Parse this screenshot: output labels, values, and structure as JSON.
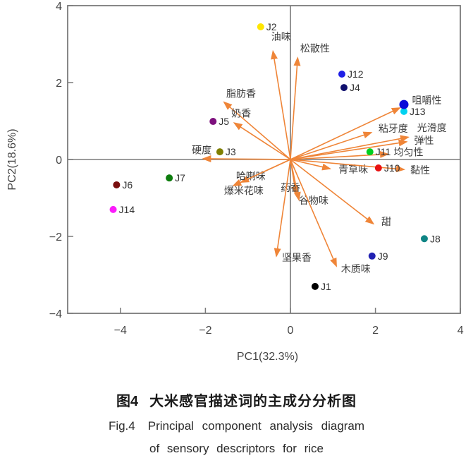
{
  "figure": {
    "caption": {
      "fig_label_zh": "图4",
      "title_zh": "大米感官描述词的主成分分析图",
      "fig_label_en": "Fig.4",
      "title_en_line1": "Principal component analysis diagram",
      "title_en_line2": "of sensory descriptors for rice"
    }
  },
  "chart_data": {
    "type": "scatter",
    "subtype": "pca-biplot",
    "title": "",
    "xlabel": "PC1(32.3%)",
    "ylabel": "PC2(18.6%)",
    "xlim": [
      -5.24,
      4
    ],
    "ylim": [
      -4,
      4
    ],
    "grid": false,
    "legend_position": "none",
    "x_ticks": [
      {
        "v": -4,
        "label": "−4"
      },
      {
        "v": -2,
        "label": "−2"
      },
      {
        "v": 0,
        "label": "0"
      },
      {
        "v": 2,
        "label": "2"
      },
      {
        "v": 4,
        "label": "4"
      }
    ],
    "y_ticks": [
      {
        "v": -4,
        "label": "−4"
      },
      {
        "v": -2,
        "label": "−2"
      },
      {
        "v": 0,
        "label": "0"
      },
      {
        "v": 2,
        "label": "2"
      },
      {
        "v": 4,
        "label": "4"
      }
    ],
    "colors": {
      "vector": "#ef8538",
      "axis": "#7a7a7a",
      "tick_text": "#454545",
      "label_text": "#3d3d3d"
    },
    "points": [
      {
        "name": "J1",
        "label": "J1",
        "x": 0.58,
        "y": -3.3,
        "color": "#000000",
        "r": 5
      },
      {
        "name": "J2",
        "label": "J2",
        "x": -0.7,
        "y": 3.45,
        "color": "#ffe600",
        "r": 5
      },
      {
        "name": "J3",
        "label": "J3",
        "x": -1.66,
        "y": 0.2,
        "color": "#7f7f00",
        "r": 5
      },
      {
        "name": "J4",
        "label": "J4",
        "x": 1.26,
        "y": 1.87,
        "color": "#10106e",
        "r": 5
      },
      {
        "name": "J5",
        "label": "J5",
        "x": -1.82,
        "y": 0.99,
        "color": "#7d107d",
        "r": 5
      },
      {
        "name": "J6",
        "label": "J6",
        "x": -4.09,
        "y": -0.66,
        "color": "#7a0f0f",
        "r": 5
      },
      {
        "name": "J7",
        "label": "J7",
        "x": -2.85,
        "y": -0.48,
        "color": "#0e7d0e",
        "r": 5
      },
      {
        "name": "J8",
        "label": "J8",
        "x": 3.15,
        "y": -2.06,
        "color": "#0f8585",
        "r": 5
      },
      {
        "name": "J9",
        "label": "J9",
        "x": 1.92,
        "y": -2.51,
        "color": "#2121b2",
        "r": 5
      },
      {
        "name": "J10",
        "label": "J10",
        "x": 2.07,
        "y": -0.22,
        "color": "#e81111",
        "r": 5
      },
      {
        "name": "J11",
        "label": "J11",
        "x": 1.87,
        "y": 0.2,
        "color": "#00d01e",
        "r": 5
      },
      {
        "name": "J12",
        "label": "J12",
        "x": 1.21,
        "y": 2.22,
        "color": "#1f1fe6",
        "r": 5
      },
      {
        "name": "J13",
        "label": "J13",
        "x": 2.67,
        "y": 1.25,
        "color": "#00d2f0",
        "r": 5
      },
      {
        "name": "J14",
        "label": "J14",
        "x": -4.17,
        "y": -1.3,
        "color": "#fb1cfb",
        "r": 5
      },
      {
        "name": "unlabeled-point",
        "label": "",
        "x": 2.67,
        "y": 1.43,
        "color": "#0b0bd9",
        "r": 6.5
      }
    ],
    "vectors": [
      {
        "name": "oil-flavor",
        "label": "油味",
        "x": -0.41,
        "y": 2.81,
        "label_x": -0.22,
        "label_y": 3.1,
        "anchor": "middle"
      },
      {
        "name": "looseness",
        "label": "松散性",
        "x": 0.17,
        "y": 2.64,
        "label_x": 0.23,
        "label_y": 2.8,
        "anchor": "start"
      },
      {
        "name": "fatty-aroma",
        "label": "脂肪香",
        "x": -1.56,
        "y": 1.49,
        "label_x": -1.16,
        "label_y": 1.62,
        "anchor": "middle"
      },
      {
        "name": "milky-aroma",
        "label": "奶香",
        "x": -1.32,
        "y": 0.95,
        "label_x": -1.39,
        "label_y": 1.11,
        "anchor": "start"
      },
      {
        "name": "hardness",
        "label": "硬度",
        "x": -2.05,
        "y": 0.02,
        "label_x": -2.32,
        "label_y": 0.16,
        "anchor": "start"
      },
      {
        "name": "rancid-flavor",
        "label": "哈喇味",
        "x": -1.16,
        "y": -0.59,
        "label_x": -1.28,
        "label_y": -0.52,
        "anchor": "start"
      },
      {
        "name": "popcorn-flavor",
        "label": "爆米花味",
        "x": -1.34,
        "y": -0.68,
        "label_x": -1.56,
        "label_y": -0.9,
        "anchor": "start"
      },
      {
        "name": "medicinal-aroma",
        "label": "药香",
        "x": 0.13,
        "y": -0.9,
        "label_x": -0.23,
        "label_y": -0.83,
        "anchor": "start"
      },
      {
        "name": "grain-flavor",
        "label": "谷物味",
        "x": 0.2,
        "y": -1.05,
        "label_x": 0.2,
        "label_y": -1.16,
        "anchor": "start"
      },
      {
        "name": "grassy-flavor",
        "label": "青草味",
        "x": 0.93,
        "y": -0.24,
        "label_x": 1.13,
        "label_y": -0.35,
        "anchor": "start"
      },
      {
        "name": "stickiness",
        "label": "黏性",
        "x": 2.67,
        "y": -0.26,
        "label_x": 2.82,
        "label_y": -0.37,
        "anchor": "start"
      },
      {
        "name": "sweet",
        "label": "甜",
        "x": 1.95,
        "y": -1.67,
        "label_x": 2.14,
        "label_y": -1.71,
        "anchor": "start"
      },
      {
        "name": "woody-flavor",
        "label": "木质味",
        "x": 1.08,
        "y": -2.77,
        "label_x": 1.19,
        "label_y": -2.94,
        "anchor": "start"
      },
      {
        "name": "nutty-aroma",
        "label": "坚果香",
        "x": -0.33,
        "y": -2.51,
        "label_x": -0.2,
        "label_y": -2.64,
        "anchor": "start"
      },
      {
        "name": "chewiness",
        "label": "咀嚼性",
        "x": 2.57,
        "y": 1.34,
        "label_x": 2.86,
        "label_y": 1.45,
        "anchor": "start"
      },
      {
        "name": "tooth-adhesion",
        "label": "粘牙度",
        "x": 1.9,
        "y": 0.7,
        "label_x": 2.07,
        "label_y": 0.72,
        "anchor": "start"
      },
      {
        "name": "smoothness",
        "label": "光滑度",
        "x": 2.77,
        "y": 0.58,
        "label_x": 2.98,
        "label_y": 0.73,
        "anchor": "start"
      },
      {
        "name": "springiness",
        "label": "弹性",
        "x": 2.73,
        "y": 0.46,
        "label_x": 2.91,
        "label_y": 0.4,
        "anchor": "start"
      },
      {
        "name": "uniformity",
        "label": "均匀性",
        "x": 2.29,
        "y": 0.14,
        "label_x": 2.43,
        "label_y": 0.1,
        "anchor": "start"
      }
    ]
  }
}
